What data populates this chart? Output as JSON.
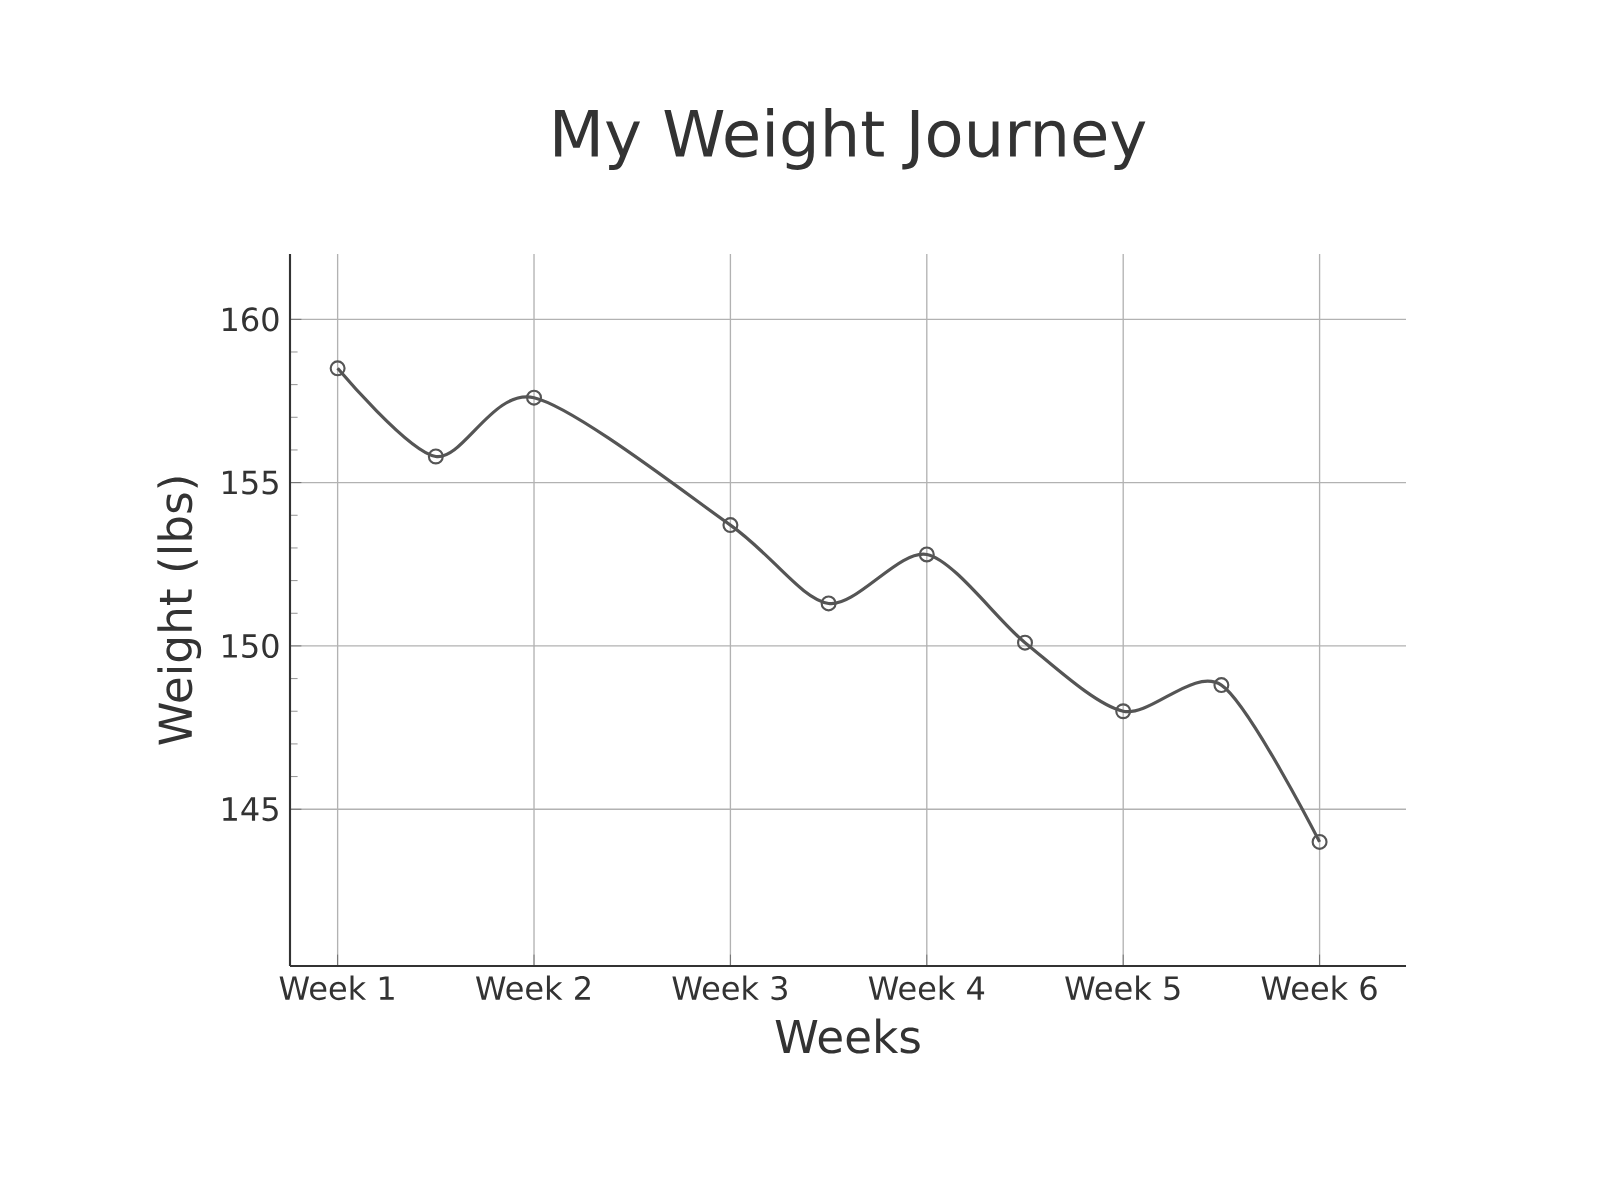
{
  "chart_data": {
    "type": "line",
    "title": "My Weight Journey",
    "xlabel": "Weeks",
    "ylabel": "Weight (lbs)",
    "categories": [
      "Week 1",
      null,
      "Week 2",
      null,
      "Week 3",
      null,
      "Week 4",
      null,
      "Week 5",
      null,
      "Week 6"
    ],
    "series": [
      {
        "color": "#555555",
        "values": [
          158.5,
          155.8,
          157.6,
          null,
          153.7,
          151.3,
          152.8,
          150.1,
          148.0,
          148.8,
          144.0
        ]
      }
    ],
    "ylim": [
      140.2,
      162
    ],
    "yticks": [
      145,
      150,
      155,
      160
    ],
    "grid": true,
    "marker": "circle",
    "line_style": "solid"
  }
}
